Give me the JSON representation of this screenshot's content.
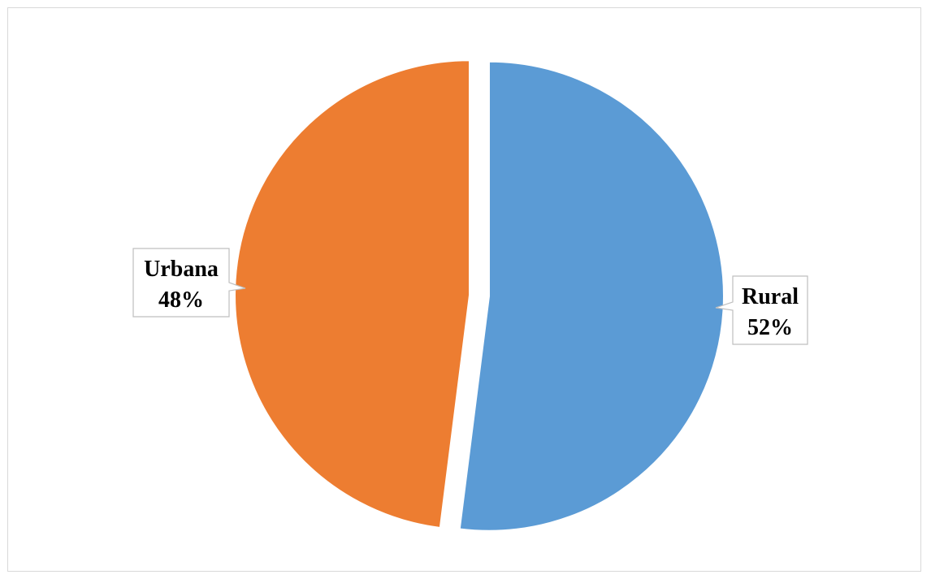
{
  "chart_data": {
    "type": "pie",
    "title": "",
    "slices": [
      {
        "label": "Rural",
        "value": 52,
        "value_label": "52%",
        "color": "#5B9BD5"
      },
      {
        "label": "Urbana",
        "value": 48,
        "value_label": "48%",
        "color": "#ED7D31"
      }
    ],
    "start_angle": "12 o'clock, clockwise",
    "exploded": true,
    "legend": "none",
    "data_labels": "callouts"
  }
}
